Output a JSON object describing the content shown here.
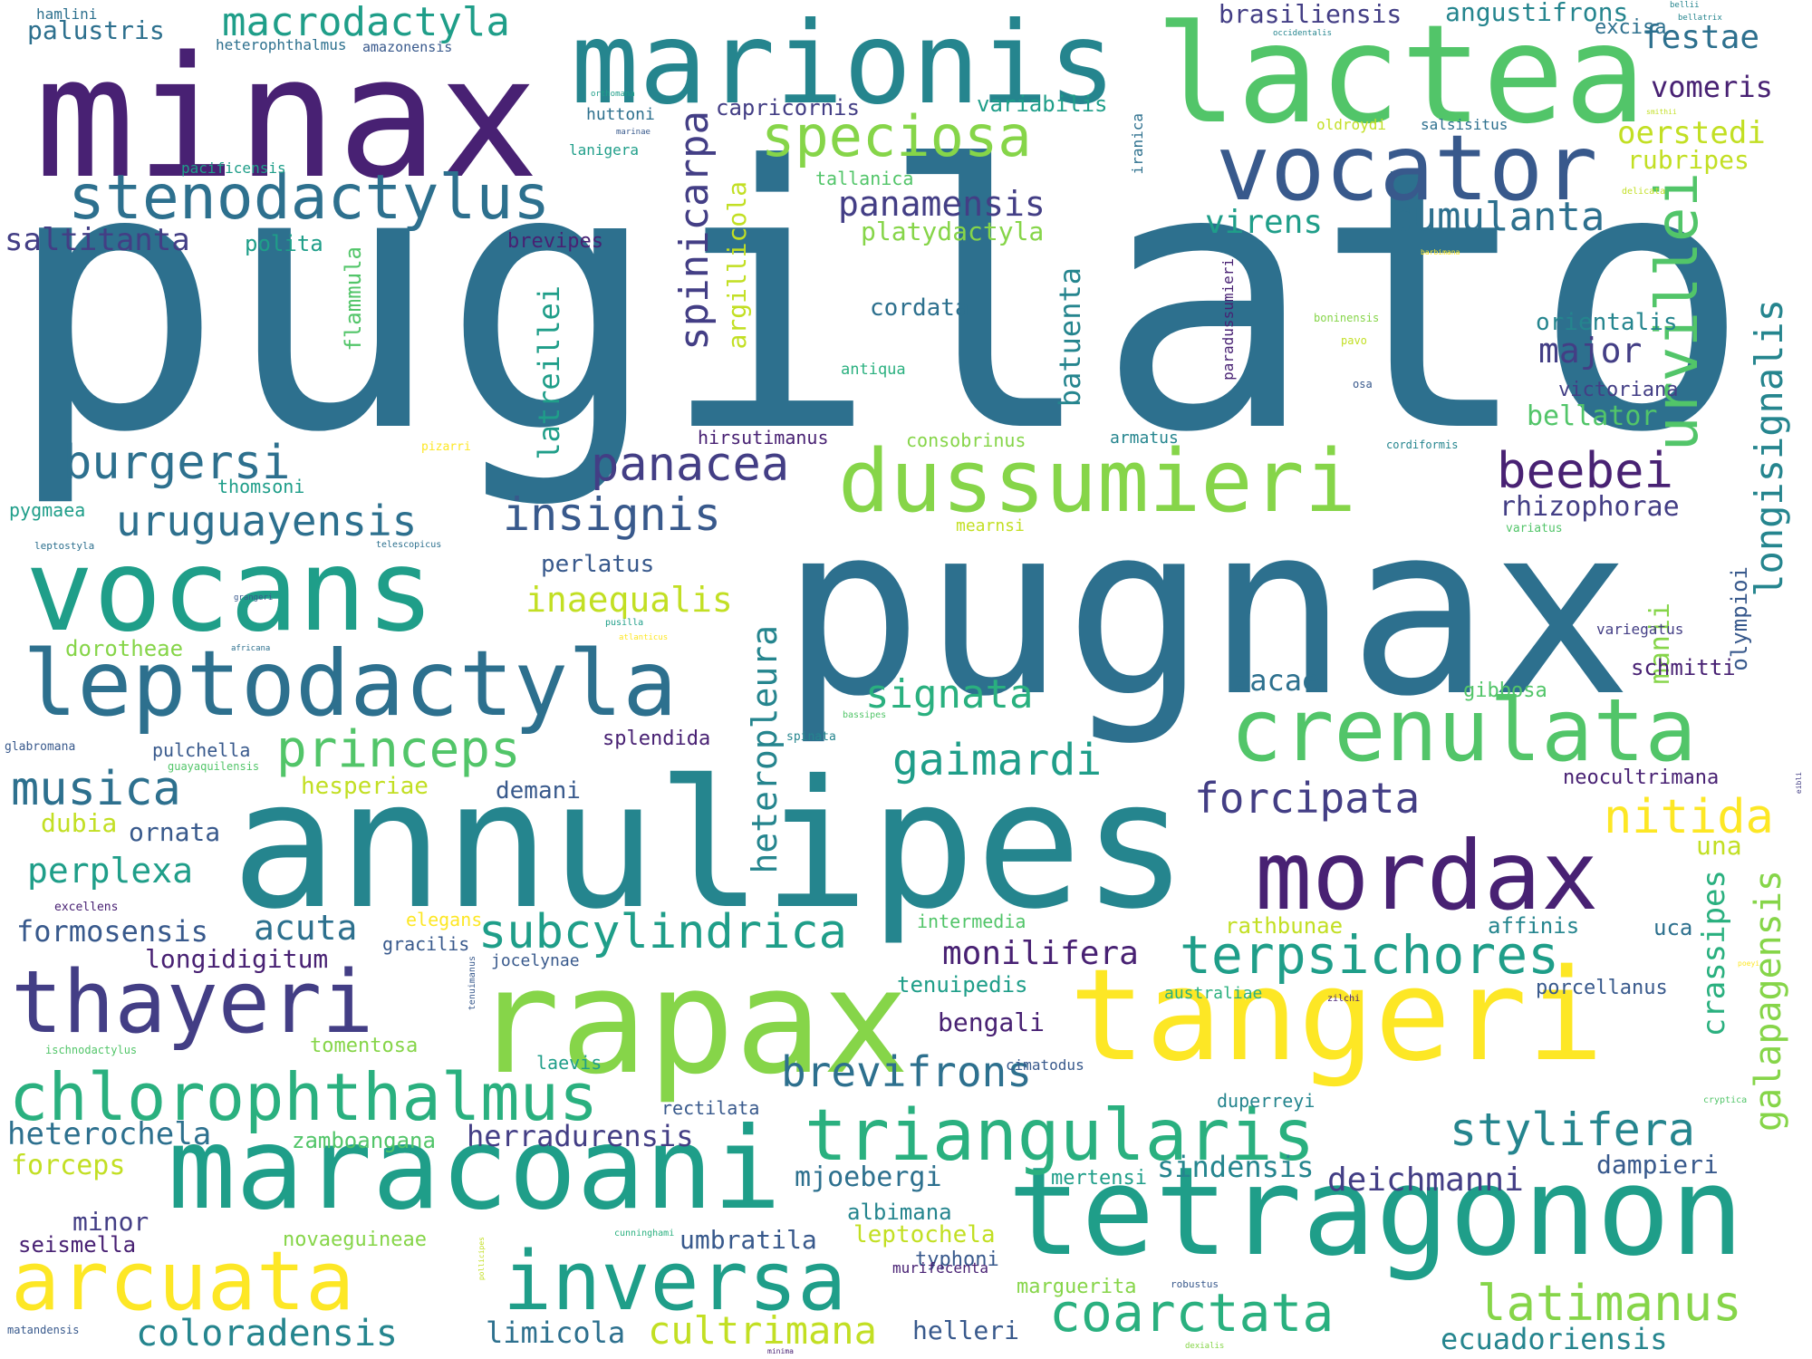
{
  "palette": {
    "background": "#ffffff",
    "p1": "#482173",
    "p2": "#433e85",
    "p3": "#38598c",
    "p4": "#2d708e",
    "p5": "#25858e",
    "p6": "#1f9e89",
    "p7": "#2ab07f",
    "p8": "#52c569",
    "p9": "#86d549",
    "p10": "#c2df23",
    "p11": "#fde725"
  },
  "words": [
    {
      "text": "pugilator",
      "color": "p4"
    },
    {
      "text": "pugnax",
      "color": "p4"
    },
    {
      "text": "annulipes",
      "color": "p5"
    },
    {
      "text": "minax",
      "color": "p1"
    },
    {
      "text": "marionis",
      "color": "p5"
    },
    {
      "text": "lactea",
      "color": "p8"
    },
    {
      "text": "vocator",
      "color": "p3"
    },
    {
      "text": "tangeri",
      "color": "p11"
    },
    {
      "text": "tetragonon",
      "color": "p6"
    },
    {
      "text": "vocans",
      "color": "p6"
    },
    {
      "text": "rapax",
      "color": "p9"
    },
    {
      "text": "maracoani",
      "color": "p6"
    },
    {
      "text": "mordax",
      "color": "p1"
    },
    {
      "text": "leptodactyla",
      "color": "p4"
    },
    {
      "text": "dussumieri",
      "color": "p9"
    },
    {
      "text": "crenulata",
      "color": "p8"
    },
    {
      "text": "inversa",
      "color": "p6"
    },
    {
      "text": "arcuata",
      "color": "p11"
    },
    {
      "text": "thayeri",
      "color": "p2"
    },
    {
      "text": "chlorophthalmus",
      "color": "p7"
    },
    {
      "text": "triangularis",
      "color": "p7"
    },
    {
      "text": "stenodactylus",
      "color": "p4"
    },
    {
      "text": "urvillei",
      "color": "p8"
    },
    {
      "text": "coarctata",
      "color": "p7"
    },
    {
      "text": "terpsichores",
      "color": "p6"
    },
    {
      "text": "speciosa",
      "color": "p9"
    },
    {
      "text": "subcylindrica",
      "color": "p6"
    },
    {
      "text": "beebei",
      "color": "p1"
    },
    {
      "text": "burgersi",
      "color": "p4"
    },
    {
      "text": "panacea",
      "color": "p2"
    },
    {
      "text": "insignis",
      "color": "p3"
    },
    {
      "text": "uruguayensis",
      "color": "p4"
    },
    {
      "text": "stylifera",
      "color": "p5"
    },
    {
      "text": "cumulanta",
      "color": "p4"
    },
    {
      "text": "princeps",
      "color": "p8"
    },
    {
      "text": "musica",
      "color": "p4"
    },
    {
      "text": "gaimardi",
      "color": "p6"
    },
    {
      "text": "forcipata",
      "color": "p2"
    },
    {
      "text": "brevifrons",
      "color": "p4"
    },
    {
      "text": "latimanus",
      "color": "p9"
    },
    {
      "text": "longisignalis",
      "color": "p5"
    },
    {
      "text": "nitida",
      "color": "p11"
    },
    {
      "text": "spinicarpa",
      "color": "p2"
    },
    {
      "text": "panamensis",
      "color": "p2"
    },
    {
      "text": "macrodactyla",
      "color": "p6"
    },
    {
      "text": "signata",
      "color": "p7"
    },
    {
      "text": "perplexa",
      "color": "p6"
    },
    {
      "text": "cultrimana",
      "color": "p10"
    },
    {
      "text": "galapagensis",
      "color": "p9"
    },
    {
      "text": "heteropleura",
      "color": "p5"
    },
    {
      "text": "coloradensis",
      "color": "p5"
    },
    {
      "text": "deichmanni",
      "color": "p2"
    },
    {
      "text": "monilifera",
      "color": "p1"
    },
    {
      "text": "ecuadoriensis",
      "color": "p5"
    },
    {
      "text": "inaequalis",
      "color": "p10"
    },
    {
      "text": "saltitanta",
      "color": "p2"
    },
    {
      "text": "acuta",
      "color": "p4"
    },
    {
      "text": "heterochela",
      "color": "p4"
    },
    {
      "text": "vomeris",
      "color": "p1"
    },
    {
      "text": "festae",
      "color": "p4"
    },
    {
      "text": "major",
      "color": "p2"
    },
    {
      "text": "oerstedi",
      "color": "p10"
    },
    {
      "text": "crassipes",
      "color": "p7"
    },
    {
      "text": "virens",
      "color": "p6"
    },
    {
      "text": "herradurensis",
      "color": "p2"
    },
    {
      "text": "sindensis",
      "color": "p5"
    },
    {
      "text": "formosensis",
      "color": "p3"
    },
    {
      "text": "latreillei",
      "color": "p6"
    },
    {
      "text": "batuenta",
      "color": "p5"
    },
    {
      "text": "bellator",
      "color": "p8"
    },
    {
      "text": "longidigitum",
      "color": "p1"
    },
    {
      "text": "rhizophorae",
      "color": "p2"
    },
    {
      "text": "zacae",
      "color": "p4"
    },
    {
      "text": "argillicola",
      "color": "p10"
    },
    {
      "text": "forceps",
      "color": "p10"
    },
    {
      "text": "limicola",
      "color": "p4"
    },
    {
      "text": "mjoebergi",
      "color": "p4"
    },
    {
      "text": "manii",
      "color": "p9"
    },
    {
      "text": "umbratila",
      "color": "p3"
    },
    {
      "text": "brasiliensis",
      "color": "p2"
    },
    {
      "text": "platydactyla",
      "color": "p9"
    },
    {
      "text": "rubripes",
      "color": "p10"
    },
    {
      "text": "cordata",
      "color": "p4"
    },
    {
      "text": "palustris",
      "color": "p4"
    },
    {
      "text": "angustifrons",
      "color": "p5"
    },
    {
      "text": "una",
      "color": "p10"
    },
    {
      "text": "dampieri",
      "color": "p3"
    },
    {
      "text": "orientalis",
      "color": "p5"
    },
    {
      "text": "variabilis",
      "color": "p6"
    },
    {
      "text": "capricornis",
      "color": "p2"
    },
    {
      "text": "victoriana",
      "color": "p2"
    },
    {
      "text": "bengali",
      "color": "p1"
    },
    {
      "text": "perlatus",
      "color": "p3"
    },
    {
      "text": "hesperiae",
      "color": "p10"
    },
    {
      "text": "demani",
      "color": "p3"
    },
    {
      "text": "ornata",
      "color": "p3"
    },
    {
      "text": "dubia",
      "color": "p10"
    },
    {
      "text": "minor",
      "color": "p2"
    },
    {
      "text": "zamboangana",
      "color": "p8"
    },
    {
      "text": "seismella",
      "color": "p1"
    },
    {
      "text": "helleri",
      "color": "p3"
    },
    {
      "text": "olympioi",
      "color": "p3"
    },
    {
      "text": "schmitti",
      "color": "p1"
    },
    {
      "text": "gibbosa",
      "color": "p8"
    },
    {
      "text": "porcellanus",
      "color": "p3"
    },
    {
      "text": "neocultrimana",
      "color": "p1"
    },
    {
      "text": "polita",
      "color": "p6"
    },
    {
      "text": "brevipes",
      "color": "p1"
    },
    {
      "text": "pulchella",
      "color": "p3"
    },
    {
      "text": "albimana",
      "color": "p5"
    },
    {
      "text": "leptochela",
      "color": "p10"
    },
    {
      "text": "tenuipedis",
      "color": "p6"
    },
    {
      "text": "affinis",
      "color": "p5"
    },
    {
      "text": "uca",
      "color": "p4"
    },
    {
      "text": "excisa",
      "color": "p4"
    },
    {
      "text": "flammula",
      "color": "p8"
    },
    {
      "text": "intermedia",
      "color": "p8"
    },
    {
      "text": "splendida",
      "color": "p1"
    },
    {
      "text": "tallanica",
      "color": "p8"
    },
    {
      "text": "huttoni",
      "color": "p4"
    },
    {
      "text": "lanigera",
      "color": "p6"
    },
    {
      "text": "hirsutimanus",
      "color": "p1"
    },
    {
      "text": "armatus",
      "color": "p5"
    },
    {
      "text": "consobrinus",
      "color": "p9"
    },
    {
      "text": "antiqua",
      "color": "p7"
    },
    {
      "text": "thomsoni",
      "color": "p6"
    },
    {
      "text": "pygmaea",
      "color": "p6"
    },
    {
      "text": "dorotheae",
      "color": "p9"
    },
    {
      "text": "tomentosa",
      "color": "p9"
    },
    {
      "text": "rectilata",
      "color": "p3"
    },
    {
      "text": "laevis",
      "color": "p6"
    },
    {
      "text": "elegans",
      "color": "p11"
    },
    {
      "text": "gracilis",
      "color": "p3"
    },
    {
      "text": "jocelynae",
      "color": "p3"
    },
    {
      "text": "typhoni",
      "color": "p3"
    },
    {
      "text": "marguerita",
      "color": "p9"
    },
    {
      "text": "mertensi",
      "color": "p6"
    },
    {
      "text": "rathbunae",
      "color": "p10"
    },
    {
      "text": "australiae",
      "color": "p7"
    },
    {
      "text": "duperreyi",
      "color": "p5"
    },
    {
      "text": "novaeguineae",
      "color": "p9"
    },
    {
      "text": "murifecenta",
      "color": "p1"
    },
    {
      "text": "variegatus",
      "color": "p2"
    },
    {
      "text": "mearnsi",
      "color": "p10"
    },
    {
      "text": "pacificensis",
      "color": "p6"
    },
    {
      "text": "salsisitus",
      "color": "p4"
    },
    {
      "text": "hamlini",
      "color": "p4"
    },
    {
      "text": "heterophthalmus",
      "color": "p4"
    },
    {
      "text": "amazonensis",
      "color": "p3"
    },
    {
      "text": "oldroydi",
      "color": "p10"
    },
    {
      "text": "iranica",
      "color": "p4"
    },
    {
      "text": "paradussumieri",
      "color": "p1"
    },
    {
      "text": "cimatodus",
      "color": "p3"
    },
    {
      "text": "excellens",
      "color": "p1"
    },
    {
      "text": "glabromana",
      "color": "p3"
    },
    {
      "text": "guayaquilensis",
      "color": "p8"
    },
    {
      "text": "ischnodactylus",
      "color": "p8"
    },
    {
      "text": "leptostyla",
      "color": "p4"
    },
    {
      "text": "telescopicus",
      "color": "p4"
    },
    {
      "text": "variatus",
      "color": "p8"
    },
    {
      "text": "cordiformis",
      "color": "p5"
    },
    {
      "text": "osa",
      "color": "p3"
    },
    {
      "text": "pavo",
      "color": "p10"
    },
    {
      "text": "boninensis",
      "color": "p9"
    },
    {
      "text": "pizarri",
      "color": "p11"
    },
    {
      "text": "grangeri",
      "color": "p3"
    },
    {
      "text": "africana",
      "color": "p4"
    },
    {
      "text": "pusilla",
      "color": "p6"
    },
    {
      "text": "atlanticus",
      "color": "p11"
    },
    {
      "text": "bassipes",
      "color": "p8"
    },
    {
      "text": "spinata",
      "color": "p5"
    },
    {
      "text": "tenuimanus",
      "color": "p3"
    },
    {
      "text": "cunninghami",
      "color": "p7"
    },
    {
      "text": "pollicipes",
      "color": "p10"
    },
    {
      "text": "robustus",
      "color": "p3"
    },
    {
      "text": "dexialis",
      "color": "p9"
    },
    {
      "text": "minima",
      "color": "p1"
    },
    {
      "text": "matandensis",
      "color": "p3"
    },
    {
      "text": "zilchi",
      "color": "p1"
    },
    {
      "text": "cryptica",
      "color": "p8"
    },
    {
      "text": "poeyi",
      "color": "p11"
    },
    {
      "text": "eibli",
      "color": "p2"
    },
    {
      "text": "marinae",
      "color": "p3"
    },
    {
      "text": "orthomana",
      "color": "p6"
    },
    {
      "text": "occidentalis",
      "color": "p5"
    },
    {
      "text": "bellii",
      "color": "p5"
    },
    {
      "text": "bellatrix",
      "color": "p5"
    },
    {
      "text": "smithii",
      "color": "p10"
    },
    {
      "text": "delicata",
      "color": "p10"
    },
    {
      "text": "barbimana",
      "color": "p11"
    }
  ]
}
